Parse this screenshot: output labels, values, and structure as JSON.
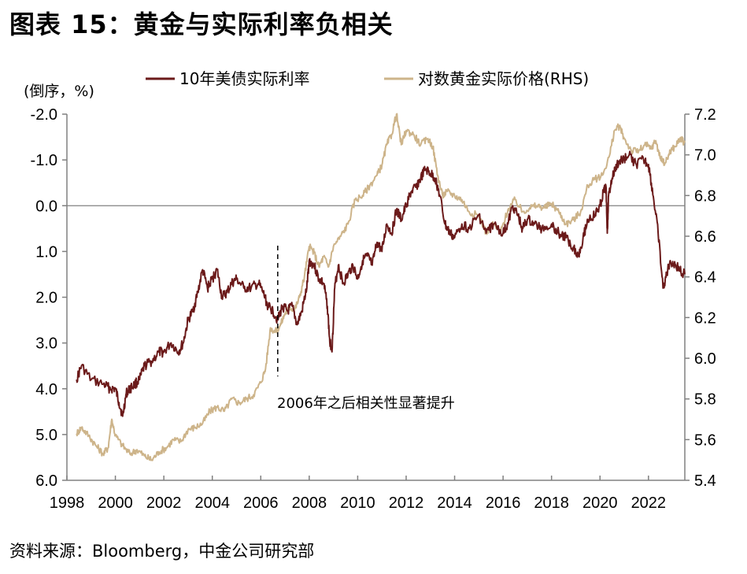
{
  "title": "图表 15：黄金与实际利率负相关",
  "source": "资料来源：Bloomberg，中金公司研究部",
  "colors": {
    "real_rate": "#6B1A1A",
    "gold": "#CDB48A",
    "axis": "#808080",
    "baseline": "#808080"
  },
  "chart_data": {
    "type": "line",
    "left_axis_unit": "(倒序，%)",
    "left_axis": {
      "inverted": true,
      "range": [
        -2.0,
        6.0
      ],
      "ticks": [
        "-2.0",
        "-1.0",
        "0.0",
        "1.0",
        "2.0",
        "3.0",
        "4.0",
        "5.0",
        "6.0"
      ]
    },
    "right_axis": {
      "label": "RHS",
      "range": [
        5.4,
        7.2
      ],
      "ticks": [
        "7.2",
        "7.0",
        "6.8",
        "6.6",
        "6.4",
        "6.2",
        "6.0",
        "5.8",
        "5.6",
        "5.4"
      ]
    },
    "x_axis": {
      "range": [
        1998,
        2023.5
      ],
      "ticks": [
        "1998",
        "2000",
        "2002",
        "2004",
        "2006",
        "2008",
        "2010",
        "2012",
        "2014",
        "2016",
        "2018",
        "2020",
        "2022"
      ]
    },
    "series": [
      {
        "name": "10年美债实际利率",
        "axis": "left",
        "x": [
          1998.4,
          1998.6,
          1999.0,
          1999.5,
          1999.8,
          2000.0,
          2000.15,
          2000.3,
          2000.45,
          2000.6,
          2000.8,
          2001.0,
          2001.2,
          2001.5,
          2001.8,
          2002.0,
          2002.3,
          2002.6,
          2002.8,
          2003.0,
          2003.2,
          2003.4,
          2003.6,
          2003.8,
          2004.0,
          2004.2,
          2004.4,
          2004.6,
          2004.8,
          2005.0,
          2005.3,
          2005.6,
          2005.9,
          2006.1,
          2006.3,
          2006.5,
          2006.7,
          2006.9,
          2007.1,
          2007.3,
          2007.5,
          2007.7,
          2007.9,
          2008.0,
          2008.2,
          2008.4,
          2008.6,
          2008.75,
          2008.85,
          2008.95,
          2009.05,
          2009.2,
          2009.4,
          2009.6,
          2009.8,
          2010.0,
          2010.2,
          2010.4,
          2010.6,
          2010.8,
          2011.0,
          2011.2,
          2011.4,
          2011.6,
          2011.8,
          2012.0,
          2012.2,
          2012.4,
          2012.6,
          2012.8,
          2013.0,
          2013.2,
          2013.4,
          2013.6,
          2013.8,
          2014.0,
          2014.3,
          2014.6,
          2015.0,
          2015.3,
          2015.6,
          2016.0,
          2016.2,
          2016.4,
          2016.6,
          2016.8,
          2017.0,
          2017.3,
          2017.6,
          2018.0,
          2018.3,
          2018.6,
          2018.9,
          2019.1,
          2019.3,
          2019.5,
          2019.8,
          2020.0,
          2020.15,
          2020.25,
          2020.3,
          2020.35,
          2020.5,
          2020.7,
          2020.9,
          2021.2,
          2021.5,
          2021.8,
          2022.0,
          2022.2,
          2022.4,
          2022.6,
          2022.75,
          2022.9,
          2023.1,
          2023.3,
          2023.5
        ],
        "values": [
          3.8,
          3.5,
          3.8,
          3.9,
          4.0,
          4.0,
          4.3,
          4.6,
          4.1,
          4.0,
          3.9,
          3.8,
          3.5,
          3.4,
          3.2,
          3.2,
          3.0,
          3.2,
          3.0,
          2.5,
          2.3,
          1.9,
          1.4,
          1.8,
          1.6,
          1.4,
          2.0,
          1.9,
          1.7,
          1.6,
          1.8,
          1.8,
          1.7,
          1.9,
          2.2,
          2.3,
          2.5,
          2.2,
          2.3,
          2.2,
          2.6,
          2.3,
          1.8,
          1.2,
          1.3,
          1.6,
          1.7,
          2.2,
          3.0,
          3.1,
          1.8,
          1.3,
          1.7,
          1.5,
          1.3,
          1.6,
          1.2,
          1.1,
          1.3,
          0.8,
          1.0,
          0.4,
          0.6,
          0.1,
          0.3,
          0.0,
          -0.3,
          -0.4,
          -0.6,
          -0.8,
          -0.7,
          -0.6,
          -0.2,
          0.4,
          0.6,
          0.7,
          0.4,
          0.5,
          0.2,
          0.6,
          0.4,
          0.6,
          0.4,
          0.0,
          0.2,
          0.5,
          0.3,
          0.4,
          0.5,
          0.4,
          0.6,
          0.7,
          0.9,
          1.1,
          0.7,
          0.3,
          0.2,
          0.0,
          -0.3,
          -0.4,
          0.6,
          -0.2,
          -0.6,
          -0.9,
          -1.0,
          -1.1,
          -0.9,
          -1.0,
          -0.9,
          -0.2,
          0.6,
          1.8,
          1.5,
          1.2,
          1.3,
          1.4,
          1.5
        ]
      },
      {
        "name": "对数黄金实际价格(RHS)",
        "axis": "right",
        "x": [
          1998.4,
          1998.6,
          1998.9,
          1999.2,
          1999.5,
          1999.7,
          1999.85,
          2000.0,
          2000.3,
          2000.6,
          2000.9,
          2001.2,
          2001.5,
          2001.8,
          2002.1,
          2002.4,
          2002.7,
          2003.0,
          2003.3,
          2003.6,
          2003.9,
          2004.2,
          2004.5,
          2004.8,
          2005.1,
          2005.4,
          2005.7,
          2006.0,
          2006.2,
          2006.4,
          2006.6,
          2006.8,
          2007.0,
          2007.2,
          2007.4,
          2007.6,
          2007.8,
          2008.0,
          2008.2,
          2008.4,
          2008.6,
          2008.8,
          2009.0,
          2009.3,
          2009.6,
          2009.9,
          2010.2,
          2010.5,
          2010.8,
          2011.0,
          2011.2,
          2011.4,
          2011.6,
          2011.8,
          2012.0,
          2012.3,
          2012.6,
          2012.9,
          2013.1,
          2013.3,
          2013.5,
          2013.7,
          2014.0,
          2014.3,
          2014.6,
          2015.0,
          2015.3,
          2015.6,
          2015.9,
          2016.2,
          2016.5,
          2016.8,
          2017.1,
          2017.4,
          2017.7,
          2018.0,
          2018.3,
          2018.6,
          2018.9,
          2019.2,
          2019.5,
          2019.8,
          2020.1,
          2020.4,
          2020.6,
          2020.8,
          2021.0,
          2021.3,
          2021.6,
          2021.9,
          2022.1,
          2022.3,
          2022.5,
          2022.7,
          2022.9,
          2023.1,
          2023.3,
          2023.5
        ],
        "values": [
          5.63,
          5.66,
          5.62,
          5.57,
          5.53,
          5.56,
          5.7,
          5.62,
          5.57,
          5.53,
          5.55,
          5.52,
          5.5,
          5.54,
          5.56,
          5.6,
          5.59,
          5.65,
          5.66,
          5.68,
          5.74,
          5.76,
          5.74,
          5.8,
          5.78,
          5.8,
          5.82,
          5.88,
          5.95,
          6.15,
          6.13,
          6.16,
          6.22,
          6.25,
          6.24,
          6.3,
          6.4,
          6.55,
          6.52,
          6.45,
          6.5,
          6.45,
          6.55,
          6.6,
          6.66,
          6.78,
          6.8,
          6.85,
          6.9,
          6.95,
          7.05,
          7.1,
          7.2,
          7.05,
          7.12,
          7.1,
          7.05,
          7.08,
          7.04,
          6.9,
          6.8,
          6.82,
          6.8,
          6.78,
          6.72,
          6.7,
          6.62,
          6.66,
          6.62,
          6.73,
          6.78,
          6.72,
          6.74,
          6.75,
          6.74,
          6.76,
          6.72,
          6.66,
          6.68,
          6.72,
          6.85,
          6.88,
          6.9,
          7.0,
          7.12,
          7.14,
          7.08,
          7.02,
          7.02,
          7.05,
          7.03,
          7.07,
          6.98,
          6.96,
          7.02,
          7.04,
          7.08,
          7.06
        ]
      }
    ],
    "annotations": [
      {
        "text": "2006年之后相关性显著提升",
        "x": 2006.7
      }
    ]
  }
}
